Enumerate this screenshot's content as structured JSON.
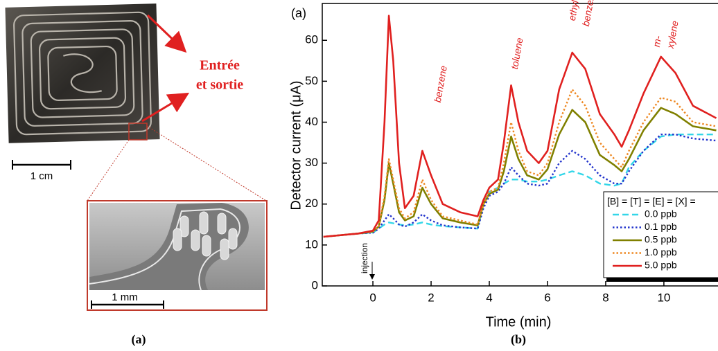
{
  "photo_panel": {
    "inlet_label": [
      "Entrée",
      "et sortie"
    ],
    "scale_bar_top": "1 cm",
    "scale_bar_inset": "1 mm",
    "caption": "(a)"
  },
  "chart_data": {
    "type": "line",
    "panel_label": "(a)",
    "caption": "(b)",
    "x_label": "Time (min)",
    "y_label": "Detector current (μA)",
    "annotations": [
      "benzene",
      "toluene",
      "ethyl-",
      "benzene",
      "m-",
      "xylene",
      "injection"
    ],
    "legend_title": "[B] = [T] = [E] = [X] =",
    "legend_position": "lower right",
    "x": [
      -1.7,
      -0.5,
      0,
      0.2,
      0.4,
      0.55,
      0.7,
      0.9,
      1.1,
      1.4,
      1.7,
      2.0,
      2.4,
      3.0,
      3.6,
      3.8,
      4.0,
      4.3,
      4.5,
      4.75,
      5.0,
      5.3,
      5.7,
      6.0,
      6.4,
      6.85,
      7.3,
      7.8,
      8.3,
      8.55,
      8.8,
      9.3,
      9.9,
      10.4,
      11.0,
      11.8
    ],
    "series": [
      {
        "name": "0.0 ppb",
        "color": "#33d6e8",
        "line_style": "dashed",
        "values": [
          12,
          12.8,
          13,
          14,
          15,
          15.5,
          15.3,
          15,
          14.8,
          15,
          15.5,
          15,
          14.6,
          14.3,
          14,
          20,
          23,
          24,
          25,
          26,
          26,
          25.5,
          25.5,
          26,
          27,
          28,
          27,
          25,
          24.5,
          25,
          29,
          33,
          36.5,
          37,
          37,
          37
        ]
      },
      {
        "name": "0.1 ppb",
        "color": "#2233cc",
        "line_style": "dotted",
        "values": [
          12,
          12.8,
          13,
          14,
          16,
          17.5,
          16.5,
          15,
          14.5,
          15.5,
          17.5,
          16,
          14.8,
          14.3,
          14,
          19,
          22,
          23,
          25,
          29,
          27,
          25,
          24.5,
          25,
          30,
          33,
          31,
          27,
          25,
          25,
          28,
          33,
          37,
          37,
          36,
          35.5
        ]
      },
      {
        "name": "0.5 ppb",
        "color": "#808000",
        "line_style": "solid",
        "values": [
          12,
          12.8,
          13.3,
          14.5,
          21,
          30,
          25,
          18,
          16,
          17,
          24,
          20,
          16.5,
          15.5,
          14.8,
          20,
          22.5,
          23.5,
          28,
          36.5,
          31,
          27,
          26,
          28.5,
          37,
          43,
          40,
          32,
          29.5,
          28,
          31,
          38,
          43.5,
          42,
          39,
          38
        ]
      },
      {
        "name": "1.0 ppb",
        "color": "#ee8822",
        "line_style": "dotted",
        "values": [
          12,
          12.8,
          13.3,
          14.5,
          22,
          31,
          26,
          19,
          16.5,
          18,
          26,
          21,
          17,
          16,
          15,
          20,
          23,
          24,
          30,
          40,
          33,
          28,
          27,
          30,
          40,
          48,
          44,
          35,
          31,
          29,
          33,
          40,
          46,
          45,
          40,
          39
        ]
      },
      {
        "name": "5.0 ppb",
        "color": "#e0201f",
        "line_style": "solid",
        "values": [
          12,
          12.8,
          13.5,
          16,
          40,
          66,
          55,
          30,
          19,
          22,
          33,
          27,
          20,
          18,
          17,
          21,
          24,
          26,
          35,
          49,
          40,
          33,
          30,
          33,
          48,
          57,
          53,
          42,
          37,
          34,
          38,
          47,
          56,
          52,
          44,
          41
        ]
      }
    ],
    "xlim": [
      -1.74,
      11.86
    ],
    "ylim": [
      0,
      69
    ],
    "xticks": [
      0,
      2,
      4,
      6,
      8,
      10
    ],
    "yticks": [
      0,
      10,
      20,
      30,
      40,
      50,
      60
    ]
  }
}
